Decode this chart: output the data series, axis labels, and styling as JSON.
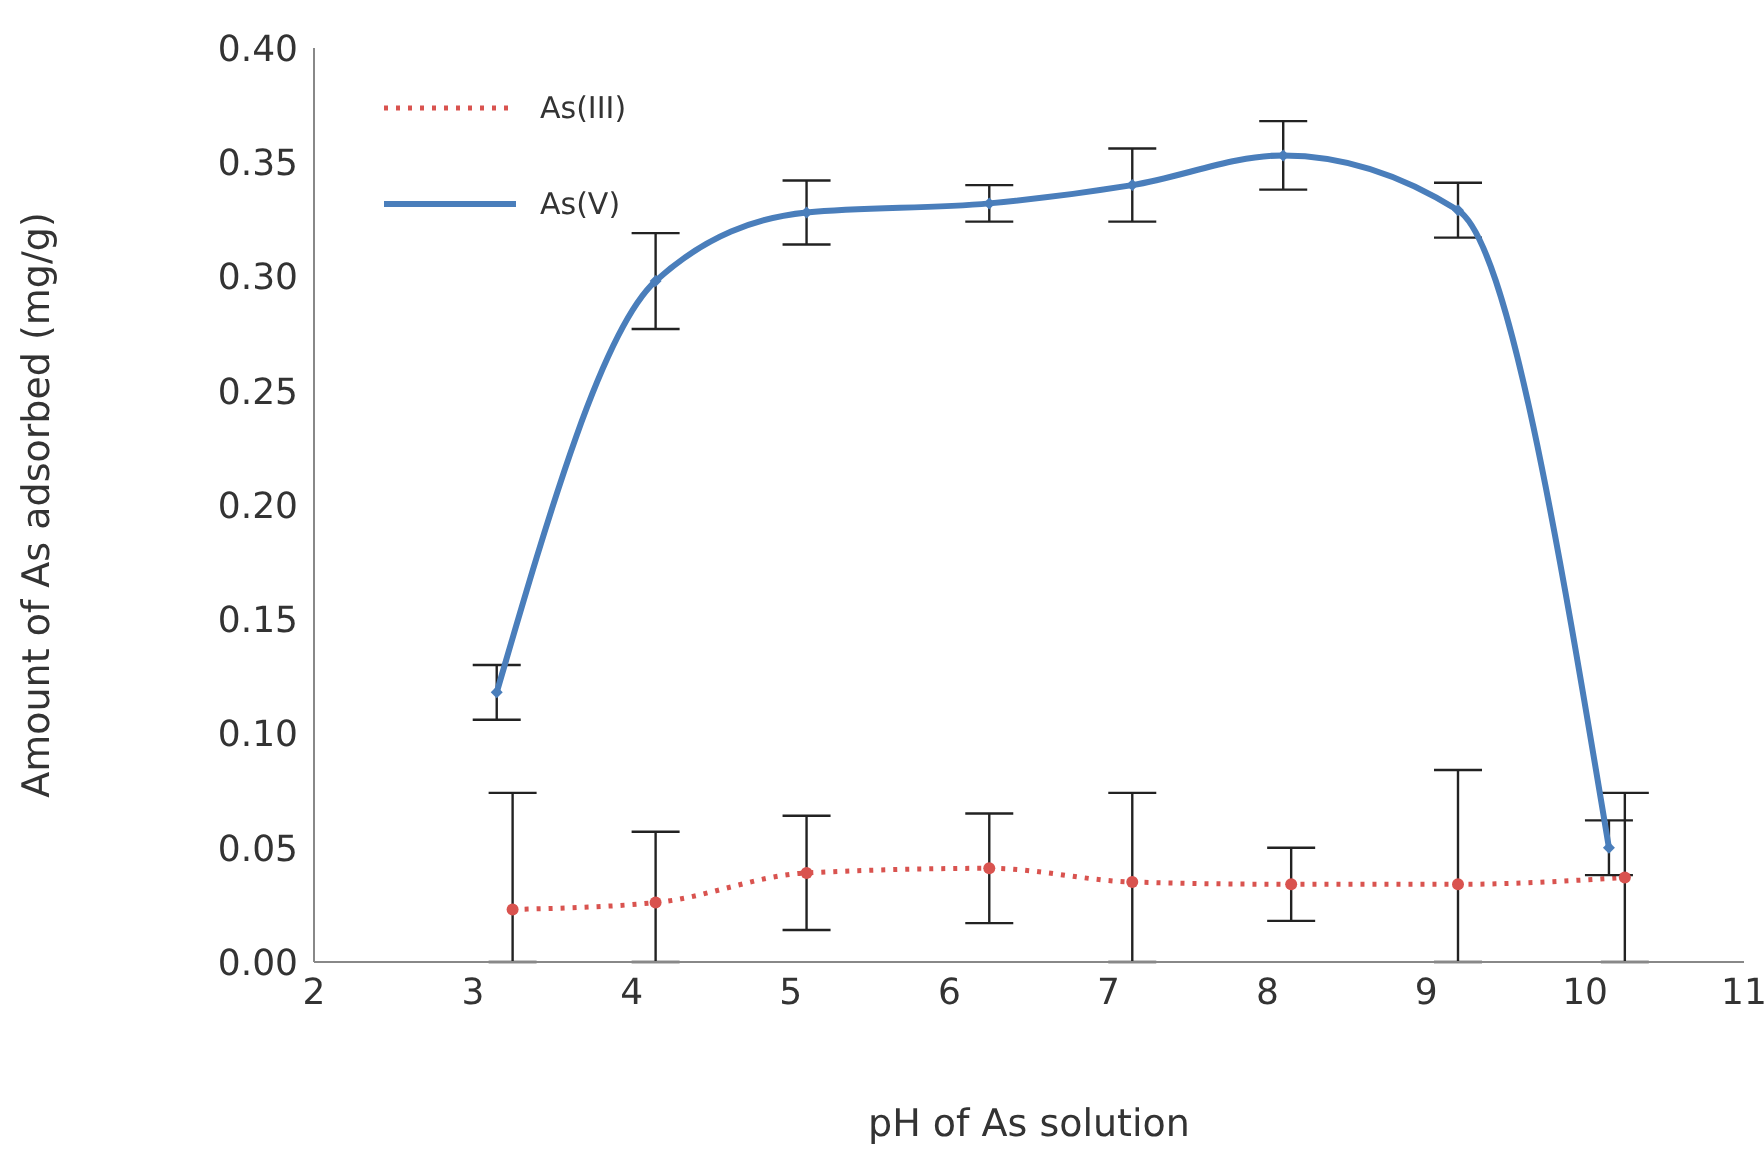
{
  "chart_data": {
    "type": "line",
    "xlabel": "pH of As solution",
    "ylabel": "Amount of As adsorbed (mg/g)",
    "xlim": [
      2,
      11
    ],
    "xticks": [
      2,
      3,
      4,
      5,
      6,
      7,
      8,
      9,
      10,
      11
    ],
    "ylim": [
      0,
      0.4
    ],
    "yticks": [
      {
        "value": 0,
        "label": "0.00"
      },
      {
        "value": 0.05,
        "label": "0.05"
      },
      {
        "value": 0.1,
        "label": "0.10"
      },
      {
        "value": 0.15,
        "label": "0.15"
      },
      {
        "value": 0.2,
        "label": "0.20"
      },
      {
        "value": 0.25,
        "label": "0.25"
      },
      {
        "value": 0.3,
        "label": "0.30"
      },
      {
        "value": 0.35,
        "label": "0.35"
      },
      {
        "value": 0.4,
        "label": "0.40"
      }
    ],
    "grid": false,
    "legend": "top left",
    "series": [
      {
        "name": "As(III)",
        "color": "#d9534f",
        "line_style": "dotted",
        "marker": "circle",
        "x": [
          3.25,
          4.15,
          5.1,
          6.25,
          7.15,
          8.15,
          9.2,
          10.25
        ],
        "values": [
          0.023,
          0.026,
          0.039,
          0.041,
          0.035,
          0.034,
          0.034,
          0.037
        ],
        "errors": [
          [
            0,
            0.074
          ],
          [
            0,
            0.057
          ],
          0.025,
          0.024,
          [
            0,
            0.074
          ],
          0.016,
          [
            0,
            0.084
          ],
          [
            0,
            0.074
          ]
        ]
      },
      {
        "name": "As(V)",
        "color": "#4a7ebb",
        "line_style": "solid",
        "marker": "diamond",
        "x": [
          3.15,
          4.15,
          5.1,
          6.25,
          7.15,
          8.1,
          9.2,
          10.15
        ],
        "values": [
          0.118,
          0.298,
          0.328,
          0.332,
          0.34,
          0.353,
          0.329,
          0.05
        ],
        "errors": [
          0.012,
          0.021,
          0.014,
          0.008,
          0.016,
          0.015,
          0.012,
          0.012
        ]
      }
    ]
  }
}
